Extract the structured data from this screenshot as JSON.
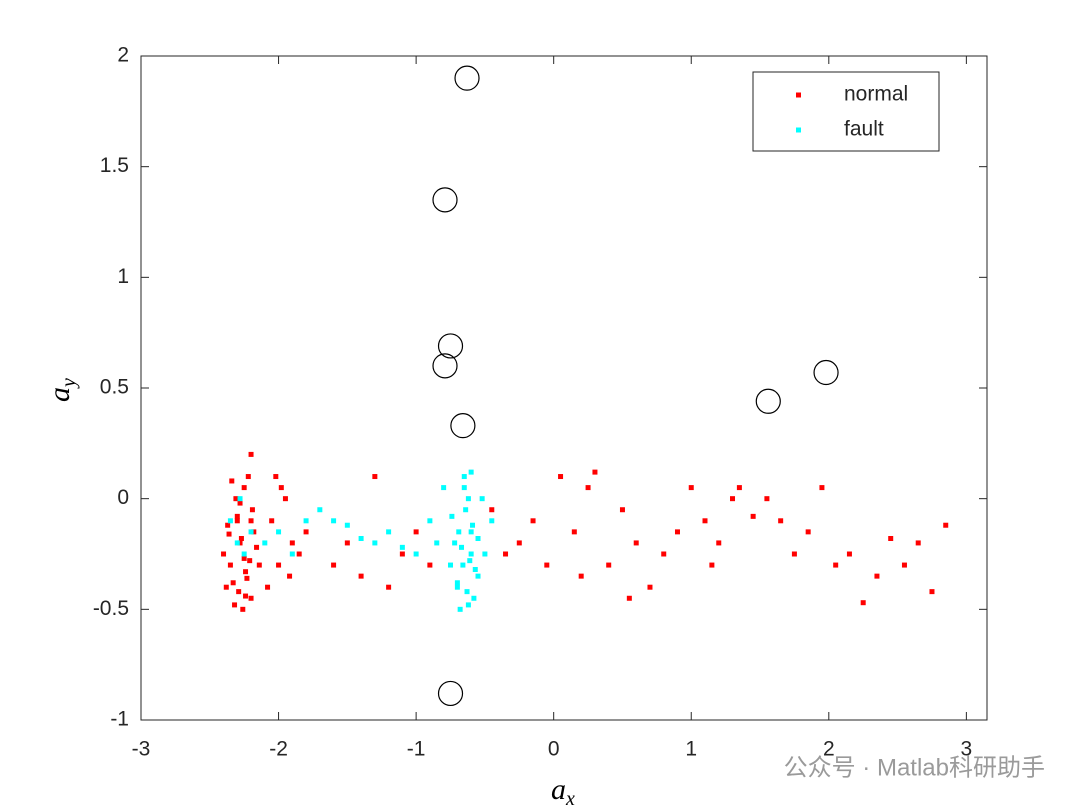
{
  "chart_data": {
    "type": "scatter",
    "xlabel": [
      "a",
      "x"
    ],
    "ylabel": [
      "a",
      "y"
    ],
    "xlim": [
      -3,
      3.15
    ],
    "ylim": [
      -1,
      2
    ],
    "xticks": [
      -3,
      -2,
      -1,
      0,
      1,
      2,
      3
    ],
    "yticks": [
      -1,
      -0.5,
      0,
      0.5,
      1,
      1.5,
      2
    ],
    "legend": "upper right",
    "watermark": "公众号 · Matlab科研助手",
    "series": [
      {
        "name": "normal",
        "color": "#ff0000",
        "x": [
          -2.35,
          -2.3,
          -2.25,
          -2.2,
          -2.28,
          -2.33,
          -2.22,
          -2.18,
          -2.4,
          -2.26,
          -2.31,
          -2.24,
          -2.19,
          -2.37,
          -2.29,
          -2.21,
          -2.34,
          -2.27,
          -2.23,
          -2.16,
          -2.38,
          -2.3,
          -2.25,
          -2.2,
          -2.32,
          -2.28,
          -2.14,
          -2.36,
          -2.24,
          -2.2,
          -2.05,
          -2.0,
          -1.95,
          -1.9,
          -2.08,
          -1.98,
          -1.92,
          -1.85,
          -1.8,
          -2.02,
          -1.6,
          -1.5,
          -1.4,
          -1.3,
          -1.2,
          -1.1,
          -1.0,
          -0.9,
          -0.45,
          -0.35,
          -0.25,
          -0.15,
          -0.05,
          0.05,
          0.15,
          0.25,
          0.3,
          0.4,
          0.5,
          0.6,
          0.7,
          0.8,
          0.9,
          1.0,
          1.1,
          1.2,
          1.3,
          1.35,
          1.45,
          1.55,
          1.65,
          1.75,
          1.85,
          1.95,
          2.05,
          2.15,
          2.25,
          2.35,
          2.45,
          2.55,
          2.65,
          2.75,
          2.85,
          0.2,
          0.55,
          1.15
        ],
        "y": [
          -0.3,
          -0.1,
          0.05,
          -0.45,
          -0.2,
          -0.38,
          0.1,
          -0.15,
          -0.25,
          -0.5,
          0.0,
          -0.33,
          -0.05,
          -0.12,
          -0.42,
          -0.28,
          0.08,
          -0.18,
          -0.36,
          -0.22,
          -0.4,
          -0.08,
          -0.27,
          0.2,
          -0.48,
          -0.02,
          -0.3,
          -0.16,
          -0.44,
          -0.1,
          -0.1,
          -0.3,
          0.0,
          -0.2,
          -0.4,
          0.05,
          -0.35,
          -0.25,
          -0.15,
          0.1,
          -0.3,
          -0.2,
          -0.35,
          0.1,
          -0.4,
          -0.25,
          -0.15,
          -0.3,
          -0.05,
          -0.25,
          -0.2,
          -0.1,
          -0.3,
          0.1,
          -0.15,
          0.05,
          0.12,
          -0.3,
          -0.05,
          -0.2,
          -0.4,
          -0.25,
          -0.15,
          0.05,
          -0.1,
          -0.2,
          0.0,
          0.05,
          -0.08,
          0.0,
          -0.1,
          -0.25,
          -0.15,
          0.05,
          -0.3,
          -0.25,
          -0.47,
          -0.35,
          -0.18,
          -0.3,
          -0.2,
          -0.42,
          -0.12,
          -0.35,
          -0.45,
          -0.3
        ]
      },
      {
        "name": "fault",
        "color": "#00ffff",
        "x": [
          -0.9,
          -0.85,
          -0.8,
          -0.75,
          -0.7,
          -0.65,
          -0.6,
          -0.55,
          -0.5,
          -0.45,
          -0.68,
          -0.62,
          -0.58,
          -0.72,
          -0.64,
          -0.66,
          -0.6,
          -0.7,
          -0.55,
          -0.63,
          -0.67,
          -0.61,
          -0.59,
          -0.65,
          -0.57,
          -0.74,
          -0.52,
          -0.69,
          -0.62,
          -0.6,
          -2.35,
          -2.3,
          -2.25,
          -2.2,
          -2.28,
          -2.1,
          -2.0,
          -1.9,
          -1.8,
          -1.7,
          -1.6,
          -1.5,
          -1.4,
          -1.3,
          -1.2,
          -1.1,
          -1.0
        ],
        "y": [
          -0.1,
          -0.2,
          0.05,
          -0.3,
          -0.4,
          0.1,
          -0.15,
          -0.35,
          -0.25,
          -0.1,
          -0.5,
          0.0,
          -0.45,
          -0.2,
          -0.05,
          -0.3,
          0.12,
          -0.38,
          -0.18,
          -0.42,
          -0.22,
          -0.28,
          -0.12,
          0.05,
          -0.32,
          -0.08,
          0.0,
          -0.15,
          -0.48,
          -0.25,
          -0.1,
          -0.2,
          -0.25,
          -0.15,
          0.0,
          -0.2,
          -0.15,
          -0.25,
          -0.1,
          -0.05,
          -0.1,
          -0.12,
          -0.18,
          -0.2,
          -0.15,
          -0.22,
          -0.25
        ]
      }
    ],
    "circles": {
      "color": "#000000",
      "x": [
        -0.63,
        -0.79,
        -0.75,
        -0.79,
        -0.66,
        1.56,
        1.98,
        -0.75
      ],
      "y": [
        1.9,
        1.35,
        0.69,
        0.6,
        0.33,
        0.44,
        0.57,
        -0.88
      ]
    }
  }
}
